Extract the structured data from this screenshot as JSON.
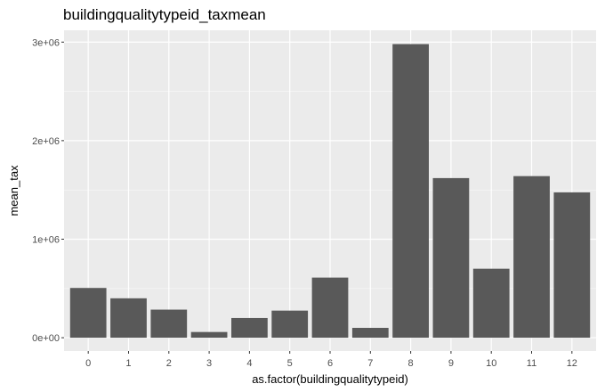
{
  "chart_data": {
    "type": "bar",
    "title": "buildingqualitytypeid_taxmean",
    "xlabel": "as.factor(buildingqualitytypeid)",
    "ylabel": "mean_tax",
    "categories": [
      "0",
      "1",
      "2",
      "3",
      "4",
      "5",
      "6",
      "7",
      "8",
      "9",
      "10",
      "11",
      "12"
    ],
    "values": [
      505000,
      400000,
      285000,
      58000,
      200000,
      275000,
      610000,
      100000,
      2980000,
      1620000,
      700000,
      1640000,
      1475000
    ],
    "ylim": [
      -135000,
      3120000
    ],
    "y_ticks": [
      0,
      1000000,
      2000000,
      3000000
    ],
    "y_tick_labels": [
      "0e+00",
      "1e+06",
      "2e+06",
      "3e+06"
    ],
    "grid": true,
    "colors": {
      "panel_background": "#ebebeb",
      "grid_line": "#ffffff",
      "bar_fill": "#595959",
      "tick_mark": "#333333"
    }
  }
}
